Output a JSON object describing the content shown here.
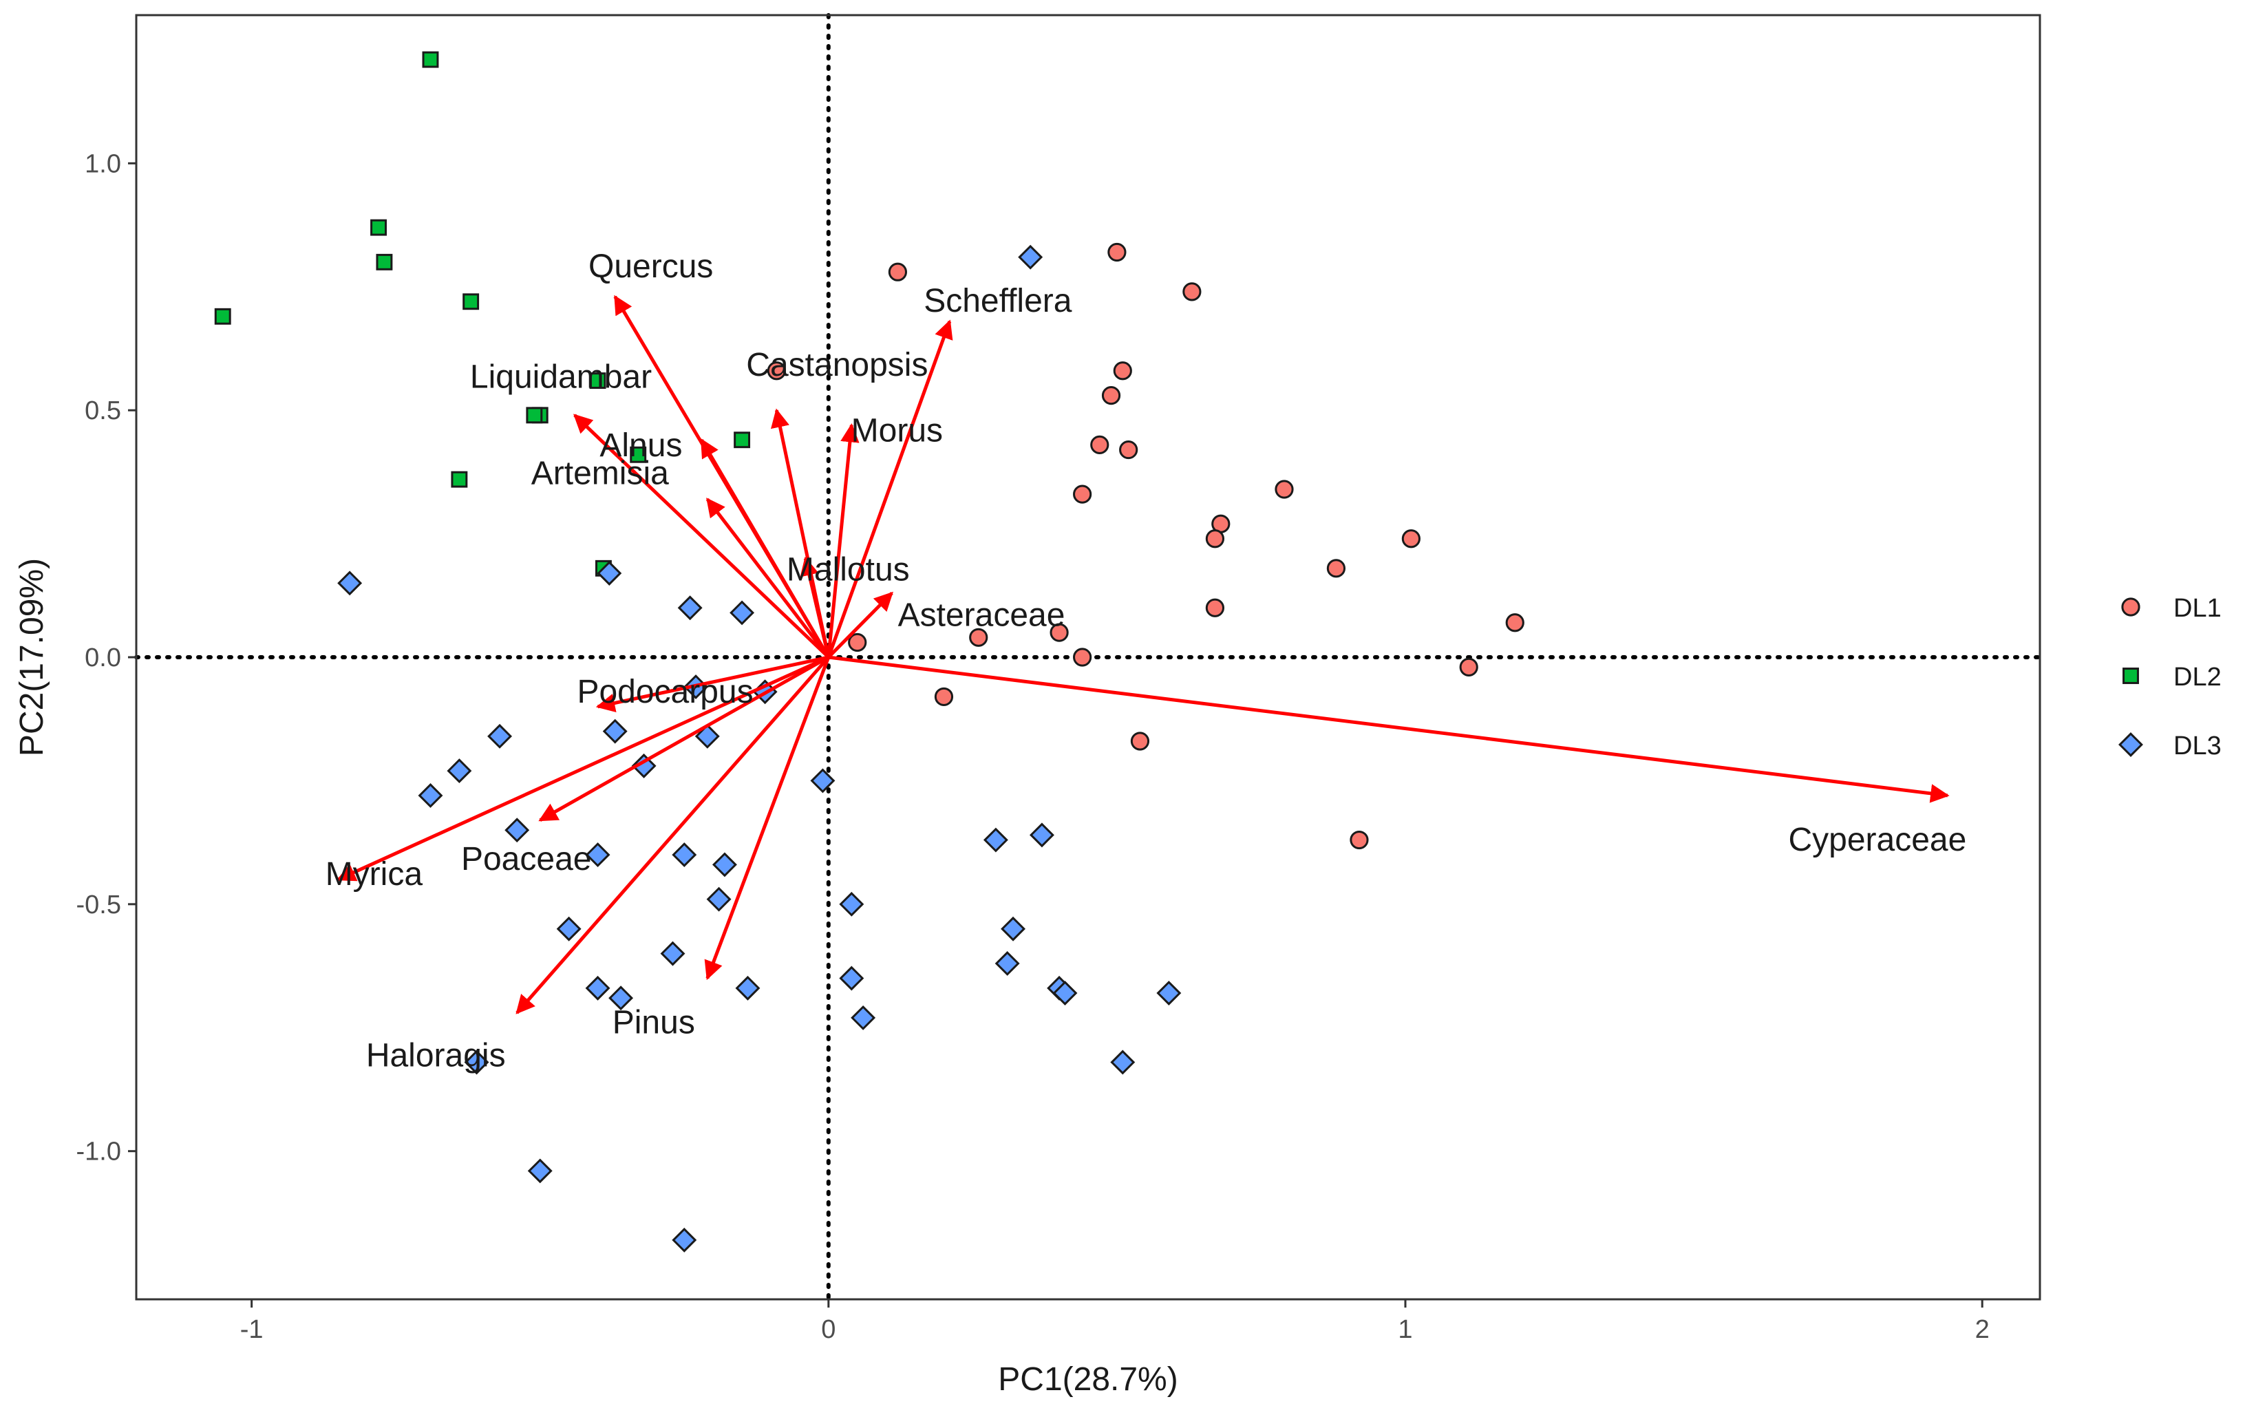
{
  "chart_data": {
    "type": "scatter",
    "subtype": "pca-biplot",
    "title": "",
    "xlabel": "PC1(28.7%)",
    "ylabel": "PC2(17.09%)",
    "xlim": [
      -1.2,
      2.1
    ],
    "ylim": [
      -1.3,
      1.3
    ],
    "x_ticks": [
      -1,
      0,
      1,
      2
    ],
    "x_tick_labels": [
      "-1",
      "0",
      "1",
      "2"
    ],
    "y_ticks": [
      -1.0,
      -0.5,
      0.0,
      0.5,
      1.0
    ],
    "y_tick_labels": [
      "-1.0",
      "-0.5",
      "0.0",
      "0.5",
      "1.0"
    ],
    "reference_lines": {
      "x": 0,
      "y": 0,
      "style": "dotted"
    },
    "grid": false,
    "legend_position": "right",
    "series": [
      {
        "name": "DL1",
        "marker": "circle",
        "color": "#F8766D",
        "points": [
          [
            0.12,
            0.78
          ],
          [
            0.5,
            0.82
          ],
          [
            0.63,
            0.74
          ],
          [
            -0.09,
            0.58
          ],
          [
            0.51,
            0.58
          ],
          [
            0.49,
            0.53
          ],
          [
            0.47,
            0.43
          ],
          [
            0.52,
            0.42
          ],
          [
            0.44,
            0.33
          ],
          [
            0.79,
            0.34
          ],
          [
            0.68,
            0.27
          ],
          [
            0.67,
            0.24
          ],
          [
            1.01,
            0.24
          ],
          [
            0.88,
            0.18
          ],
          [
            0.67,
            0.1
          ],
          [
            1.19,
            0.07
          ],
          [
            0.4,
            0.05
          ],
          [
            0.26,
            0.04
          ],
          [
            0.05,
            0.03
          ],
          [
            0.44,
            0.0
          ],
          [
            1.11,
            -0.02
          ],
          [
            0.2,
            -0.08
          ],
          [
            0.54,
            -0.17
          ],
          [
            0.92,
            -0.37
          ]
        ]
      },
      {
        "name": "DL2",
        "marker": "square",
        "color": "#00BA38",
        "points": [
          [
            -0.69,
            1.21
          ],
          [
            -0.78,
            0.87
          ],
          [
            -0.77,
            0.8
          ],
          [
            -0.62,
            0.72
          ],
          [
            -1.05,
            0.69
          ],
          [
            -0.4,
            0.56
          ],
          [
            -0.5,
            0.49
          ],
          [
            -0.51,
            0.49
          ],
          [
            -0.33,
            0.41
          ],
          [
            -0.15,
            0.44
          ],
          [
            -0.64,
            0.36
          ],
          [
            -0.39,
            0.18
          ]
        ]
      },
      {
        "name": "DL3",
        "marker": "diamond",
        "color": "#619CFF",
        "points": [
          [
            0.35,
            0.81
          ],
          [
            -0.83,
            0.15
          ],
          [
            -0.38,
            0.17
          ],
          [
            -0.24,
            0.1
          ],
          [
            -0.15,
            0.09
          ],
          [
            -0.23,
            -0.06
          ],
          [
            -0.11,
            -0.07
          ],
          [
            -0.37,
            -0.15
          ],
          [
            -0.57,
            -0.16
          ],
          [
            -0.21,
            -0.16
          ],
          [
            -0.32,
            -0.22
          ],
          [
            -0.64,
            -0.23
          ],
          [
            -0.69,
            -0.28
          ],
          [
            -0.54,
            -0.35
          ],
          [
            -0.01,
            -0.25
          ],
          [
            -0.4,
            -0.4
          ],
          [
            -0.25,
            -0.4
          ],
          [
            -0.18,
            -0.42
          ],
          [
            0.29,
            -0.37
          ],
          [
            0.37,
            -0.36
          ],
          [
            -0.19,
            -0.49
          ],
          [
            0.04,
            -0.5
          ],
          [
            -0.45,
            -0.55
          ],
          [
            0.32,
            -0.55
          ],
          [
            -0.27,
            -0.6
          ],
          [
            0.31,
            -0.62
          ],
          [
            -0.4,
            -0.67
          ],
          [
            -0.36,
            -0.69
          ],
          [
            -0.14,
            -0.67
          ],
          [
            0.04,
            -0.65
          ],
          [
            0.4,
            -0.67
          ],
          [
            0.41,
            -0.68
          ],
          [
            0.59,
            -0.68
          ],
          [
            0.06,
            -0.73
          ],
          [
            0.51,
            -0.82
          ],
          [
            -0.61,
            -0.82
          ],
          [
            -0.5,
            -1.04
          ],
          [
            -0.25,
            -1.18
          ]
        ]
      }
    ],
    "vectors": [
      {
        "label": "Quercus",
        "x": -0.37,
        "y": 0.73
      },
      {
        "label": "Schefflera",
        "x": 0.21,
        "y": 0.68
      },
      {
        "label": "Castanopsis",
        "x": -0.09,
        "y": 0.5
      },
      {
        "label": "Liquidambar",
        "x": -0.44,
        "y": 0.49
      },
      {
        "label": "Alnus",
        "x": -0.22,
        "y": 0.44
      },
      {
        "label": "Morus",
        "x": 0.04,
        "y": 0.47
      },
      {
        "label": "Artemisia",
        "x": -0.21,
        "y": 0.32
      },
      {
        "label": "Mallotus",
        "x": -0.04,
        "y": 0.2
      },
      {
        "label": "Asteraceae",
        "x": 0.11,
        "y": 0.13
      },
      {
        "label": "Podocarpus",
        "x": -0.4,
        "y": -0.1
      },
      {
        "label": "Cyperaceae",
        "x": 1.94,
        "y": -0.28
      },
      {
        "label": "Myrica",
        "x": -0.85,
        "y": -0.45
      },
      {
        "label": "Poaceae",
        "x": -0.5,
        "y": -0.33
      },
      {
        "label": "Haloragis",
        "x": -0.54,
        "y": -0.72
      },
      {
        "label": "Pinus",
        "x": -0.21,
        "y": -0.65
      }
    ],
    "vector_color": "#FF0000"
  }
}
